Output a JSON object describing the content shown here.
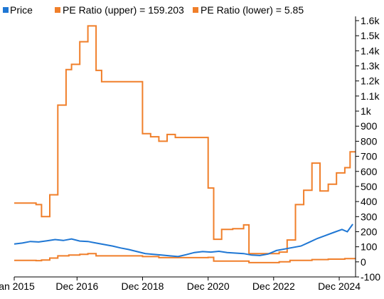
{
  "chart_data": {
    "type": "line",
    "title": "",
    "xlabel": "",
    "ylabel": "",
    "legend_position": "top-left",
    "grid": false,
    "x_range": [
      "2015-01-01",
      "2025-06-01"
    ],
    "ylim": [
      -100,
      1600
    ],
    "y_axis_side": "right",
    "x_ticks": [
      {
        "date": "2015-01-01",
        "label": "Jan 2015"
      },
      {
        "date": "2016-12-01",
        "label": "Dec 2016"
      },
      {
        "date": "2018-12-01",
        "label": "Dec 2018"
      },
      {
        "date": "2020-12-01",
        "label": "Dec 2020"
      },
      {
        "date": "2022-12-01",
        "label": "Dec 2022"
      },
      {
        "date": "2024-12-01",
        "label": "Dec 2024"
      }
    ],
    "y_ticks": [
      {
        "value": 1600,
        "label": "1.6k"
      },
      {
        "value": 1500,
        "label": "1.5k"
      },
      {
        "value": 1400,
        "label": "1.4k"
      },
      {
        "value": 1300,
        "label": "1.3k"
      },
      {
        "value": 1200,
        "label": "1.2k"
      },
      {
        "value": 1100,
        "label": "1.1k"
      },
      {
        "value": 1000,
        "label": "1k"
      },
      {
        "value": 900,
        "label": "900"
      },
      {
        "value": 800,
        "label": "800"
      },
      {
        "value": 700,
        "label": "700"
      },
      {
        "value": 600,
        "label": "600"
      },
      {
        "value": 500,
        "label": "500"
      },
      {
        "value": 400,
        "label": "400"
      },
      {
        "value": 300,
        "label": "300"
      },
      {
        "value": 200,
        "label": "200"
      },
      {
        "value": 100,
        "label": "100"
      },
      {
        "value": 0,
        "label": "0"
      },
      {
        "value": -100,
        "label": "-100"
      }
    ],
    "series": [
      {
        "name": "Price",
        "legend_label": "Price",
        "color": "#1f77d4",
        "step": false,
        "points": [
          [
            "2015-01-01",
            118
          ],
          [
            "2015-04-01",
            125
          ],
          [
            "2015-07-01",
            135
          ],
          [
            "2015-10-01",
            132
          ],
          [
            "2016-01-01",
            140
          ],
          [
            "2016-04-01",
            148
          ],
          [
            "2016-07-01",
            142
          ],
          [
            "2016-10-01",
            152
          ],
          [
            "2017-01-01",
            138
          ],
          [
            "2017-04-01",
            135
          ],
          [
            "2017-07-01",
            125
          ],
          [
            "2017-10-01",
            115
          ],
          [
            "2018-01-01",
            105
          ],
          [
            "2018-04-01",
            92
          ],
          [
            "2018-07-01",
            82
          ],
          [
            "2018-10-01",
            68
          ],
          [
            "2019-01-01",
            55
          ],
          [
            "2019-04-01",
            50
          ],
          [
            "2019-07-01",
            45
          ],
          [
            "2019-10-01",
            40
          ],
          [
            "2020-01-01",
            35
          ],
          [
            "2020-04-01",
            48
          ],
          [
            "2020-07-01",
            62
          ],
          [
            "2020-10-01",
            68
          ],
          [
            "2021-01-01",
            65
          ],
          [
            "2021-04-01",
            70
          ],
          [
            "2021-07-01",
            62
          ],
          [
            "2021-10-01",
            58
          ],
          [
            "2022-01-01",
            55
          ],
          [
            "2022-04-01",
            45
          ],
          [
            "2022-07-01",
            42
          ],
          [
            "2022-10-01",
            52
          ],
          [
            "2023-01-01",
            75
          ],
          [
            "2023-04-01",
            85
          ],
          [
            "2023-07-01",
            95
          ],
          [
            "2023-10-01",
            105
          ],
          [
            "2024-01-01",
            130
          ],
          [
            "2024-04-01",
            155
          ],
          [
            "2024-07-01",
            175
          ],
          [
            "2024-10-01",
            195
          ],
          [
            "2025-01-01",
            215
          ],
          [
            "2025-03-01",
            200
          ],
          [
            "2025-05-01",
            250
          ]
        ]
      },
      {
        "name": "PE Ratio (upper) = 159.203",
        "legend_label": "PE Ratio (upper) = 159.203",
        "color": "#f07f2a",
        "step": true,
        "points": [
          [
            "2015-01-01",
            390
          ],
          [
            "2015-09-01",
            380
          ],
          [
            "2015-11-01",
            300
          ],
          [
            "2016-02-01",
            445
          ],
          [
            "2016-05-01",
            1040
          ],
          [
            "2016-08-01",
            1275
          ],
          [
            "2016-10-01",
            1310
          ],
          [
            "2017-01-01",
            1460
          ],
          [
            "2017-04-01",
            1565
          ],
          [
            "2017-07-01",
            1270
          ],
          [
            "2017-09-01",
            1195
          ],
          [
            "2018-12-01",
            850
          ],
          [
            "2019-03-01",
            830
          ],
          [
            "2019-06-01",
            800
          ],
          [
            "2019-09-01",
            845
          ],
          [
            "2019-12-01",
            825
          ],
          [
            "2020-12-01",
            490
          ],
          [
            "2021-02-01",
            150
          ],
          [
            "2021-05-01",
            215
          ],
          [
            "2021-09-01",
            220
          ],
          [
            "2022-01-01",
            245
          ],
          [
            "2022-03-01",
            55
          ],
          [
            "2023-02-01",
            65
          ],
          [
            "2023-05-01",
            145
          ],
          [
            "2023-08-01",
            380
          ],
          [
            "2023-11-01",
            475
          ],
          [
            "2024-02-01",
            655
          ],
          [
            "2024-05-01",
            470
          ],
          [
            "2024-08-01",
            515
          ],
          [
            "2024-11-01",
            590
          ],
          [
            "2025-02-01",
            625
          ],
          [
            "2025-04-01",
            730
          ],
          [
            "2025-06-01",
            730
          ]
        ]
      },
      {
        "name": "PE Ratio (lower) = 5.85",
        "legend_label": "PE Ratio (lower) = 5.85",
        "color": "#f07f2a",
        "step": true,
        "points": [
          [
            "2015-01-01",
            10
          ],
          [
            "2015-09-01",
            8
          ],
          [
            "2015-11-01",
            12
          ],
          [
            "2016-02-01",
            25
          ],
          [
            "2016-05-01",
            40
          ],
          [
            "2016-09-01",
            45
          ],
          [
            "2017-01-01",
            50
          ],
          [
            "2017-04-01",
            55
          ],
          [
            "2017-07-01",
            40
          ],
          [
            "2018-12-01",
            35
          ],
          [
            "2019-06-01",
            28
          ],
          [
            "2020-12-01",
            30
          ],
          [
            "2021-02-01",
            5
          ],
          [
            "2022-03-01",
            -5
          ],
          [
            "2023-02-01",
            0
          ],
          [
            "2023-06-01",
            10
          ],
          [
            "2024-02-01",
            15
          ],
          [
            "2024-08-01",
            18
          ],
          [
            "2025-02-01",
            22
          ],
          [
            "2025-06-01",
            22
          ]
        ]
      }
    ]
  }
}
